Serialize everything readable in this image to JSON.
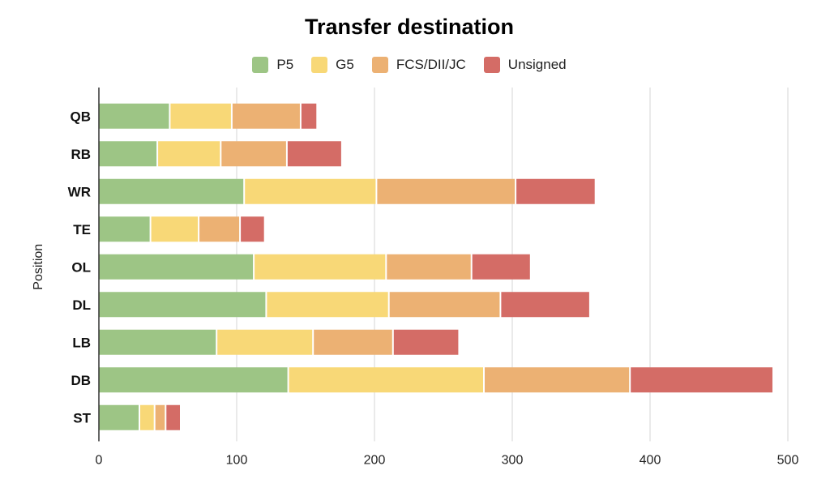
{
  "chart_data": {
    "type": "bar",
    "orientation": "horizontal",
    "stacked": true,
    "title": "Transfer destination",
    "xlabel": "",
    "ylabel": "Position",
    "xlim": [
      0,
      500
    ],
    "xticks": [
      0,
      100,
      200,
      300,
      400,
      500
    ],
    "grid": true,
    "legend_position": "top",
    "categories": [
      "QB",
      "RB",
      "WR",
      "TE",
      "OL",
      "DL",
      "LB",
      "DB",
      "ST"
    ],
    "series": [
      {
        "name": "P5",
        "color": "#9dc585",
        "values": [
          52,
          43,
          106,
          38,
          113,
          122,
          86,
          138,
          30
        ]
      },
      {
        "name": "G5",
        "color": "#f8d877",
        "values": [
          45,
          46,
          96,
          35,
          96,
          89,
          70,
          142,
          11
        ]
      },
      {
        "name": "FCS/DII/JC",
        "color": "#ecb173",
        "values": [
          50,
          48,
          101,
          30,
          62,
          81,
          58,
          106,
          8
        ]
      },
      {
        "name": "Unsigned",
        "color": "#d46c66",
        "values": [
          12,
          40,
          58,
          18,
          43,
          65,
          48,
          104,
          11
        ]
      }
    ]
  }
}
